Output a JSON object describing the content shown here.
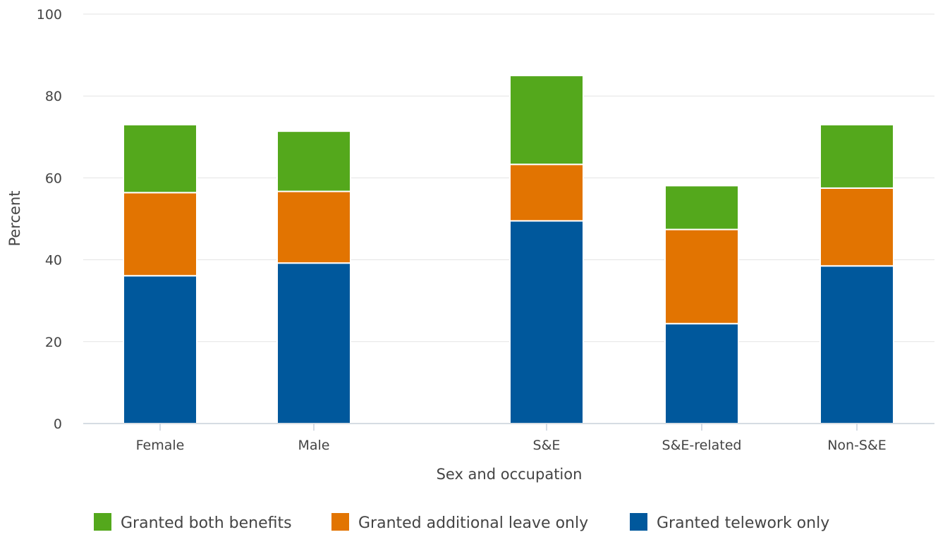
{
  "chart_data": {
    "type": "bar",
    "stacked": true,
    "categories": [
      "Female",
      "Male",
      "S&E",
      "S&E-related",
      "Non-S&E"
    ],
    "series": [
      {
        "name": "Granted telework only",
        "color": "#00589c",
        "values": [
          36.1,
          39.2,
          49.5,
          24.4,
          38.5
        ]
      },
      {
        "name": "Granted additional leave only",
        "color": "#e27401",
        "values": [
          20.3,
          17.5,
          13.8,
          23.0,
          19.0
        ]
      },
      {
        "name": "Granted both benefits",
        "color": "#54a81c",
        "values": [
          16.6,
          14.7,
          21.7,
          10.7,
          15.5
        ]
      }
    ],
    "xlabel": "Sex and occupation",
    "ylabel": "Percent",
    "ylim": [
      0,
      100
    ],
    "yticks": [
      "0",
      "20",
      "40",
      "60",
      "80",
      "100"
    ],
    "grid": true,
    "legend_position": "bottom",
    "legend_order": [
      "Granted both benefits",
      "Granted additional leave only",
      "Granted telework only"
    ]
  }
}
